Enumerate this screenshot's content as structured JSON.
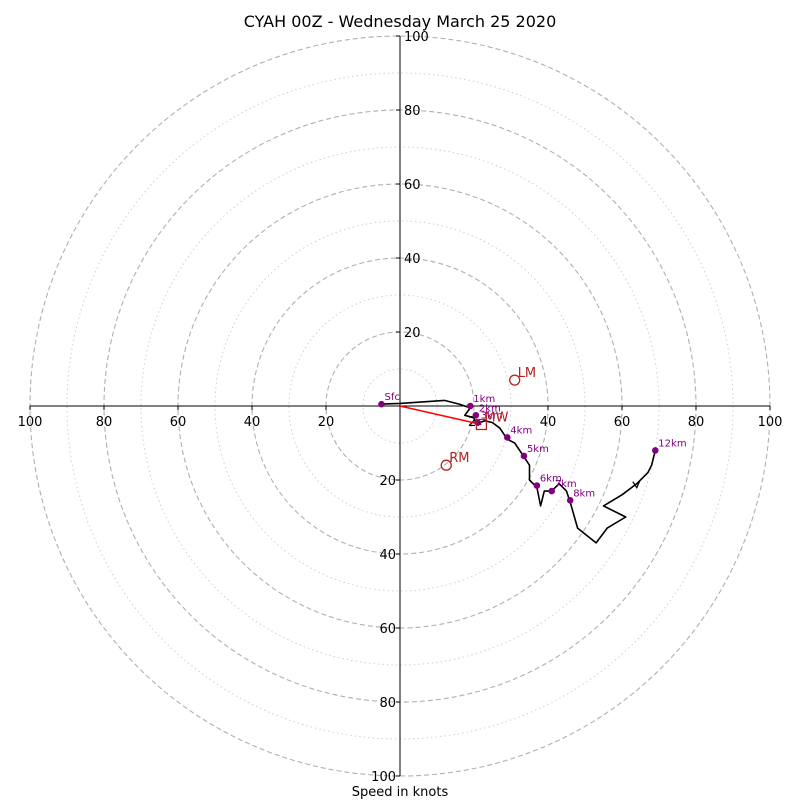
{
  "chart_data": {
    "type": "hodograph",
    "title": "CYAH 00Z - Wednesday March 25 2020",
    "xlabel": "Speed in knots",
    "units": "knots",
    "range": 100,
    "rings_dashed": [
      20,
      40,
      60,
      80,
      100
    ],
    "rings_dotted": [
      10,
      30,
      50,
      70,
      90
    ],
    "ticks": {
      "x_left": [
        "100",
        "80",
        "60",
        "40",
        "20"
      ],
      "x_right": [
        "40",
        "60",
        "80",
        "100"
      ],
      "y_top": [
        "20",
        "40",
        "60",
        "80",
        "100"
      ],
      "y_bottom": [
        "20",
        "40",
        "60",
        "80",
        "100"
      ],
      "origin_partial": "2"
    },
    "trace": [
      [
        -5,
        0.5
      ],
      [
        0,
        0.7
      ],
      [
        12,
        1.5
      ],
      [
        16,
        0.5
      ],
      [
        19,
        -0.5
      ],
      [
        17.5,
        -2.5
      ],
      [
        20,
        -3.2
      ],
      [
        20.5,
        -4.8
      ],
      [
        23,
        -4
      ],
      [
        25,
        -4.5
      ],
      [
        27,
        -6
      ],
      [
        29,
        -9
      ],
      [
        31,
        -10
      ],
      [
        33,
        -13
      ],
      [
        35,
        -16
      ],
      [
        35,
        -20
      ],
      [
        37,
        -22
      ],
      [
        38,
        -27
      ],
      [
        39,
        -23
      ],
      [
        41,
        -23
      ],
      [
        43,
        -21
      ],
      [
        45,
        -23
      ],
      [
        46,
        -26
      ],
      [
        48,
        -33
      ],
      [
        53,
        -37
      ],
      [
        56,
        -33
      ],
      [
        61,
        -30
      ],
      [
        55,
        -27
      ],
      [
        60,
        -24
      ],
      [
        64,
        -21
      ],
      [
        67,
        -18
      ],
      [
        68,
        -16
      ],
      [
        69,
        -12
      ]
    ],
    "heights": [
      {
        "label": "Sfc",
        "u": -5,
        "v": 0.5
      },
      {
        "label": "1km",
        "u": 19,
        "v": 0
      },
      {
        "label": "2km",
        "u": 20.5,
        "v": -2.5
      },
      {
        "label": "3km",
        "u": 21,
        "v": -4.5
      },
      {
        "label": "4km",
        "u": 29,
        "v": -8.5
      },
      {
        "label": "5km",
        "u": 33.5,
        "v": -13.5
      },
      {
        "label": "6km",
        "u": 37,
        "v": -21.5
      },
      {
        "label": "7km",
        "u": 41,
        "v": -23
      },
      {
        "label": "8km",
        "u": 46,
        "v": -25.5
      },
      {
        "label": "12km",
        "u": 69,
        "v": -12
      }
    ],
    "motions": [
      {
        "label": "LM",
        "u": 31,
        "v": 7,
        "marker": "circle"
      },
      {
        "label": "MW",
        "u": 22,
        "v": -5,
        "marker": "square"
      },
      {
        "label": "RM",
        "u": 12.5,
        "v": -16,
        "marker": "circle"
      }
    ],
    "shear_vector": {
      "from": [
        0,
        0
      ],
      "to": [
        22,
        -5
      ]
    },
    "colors": {
      "trace": "#000000",
      "heights": "#800080",
      "motions": "#b22222",
      "shear": "#ff0000",
      "grid": "#b0b0b0",
      "axes": "#000000"
    }
  }
}
